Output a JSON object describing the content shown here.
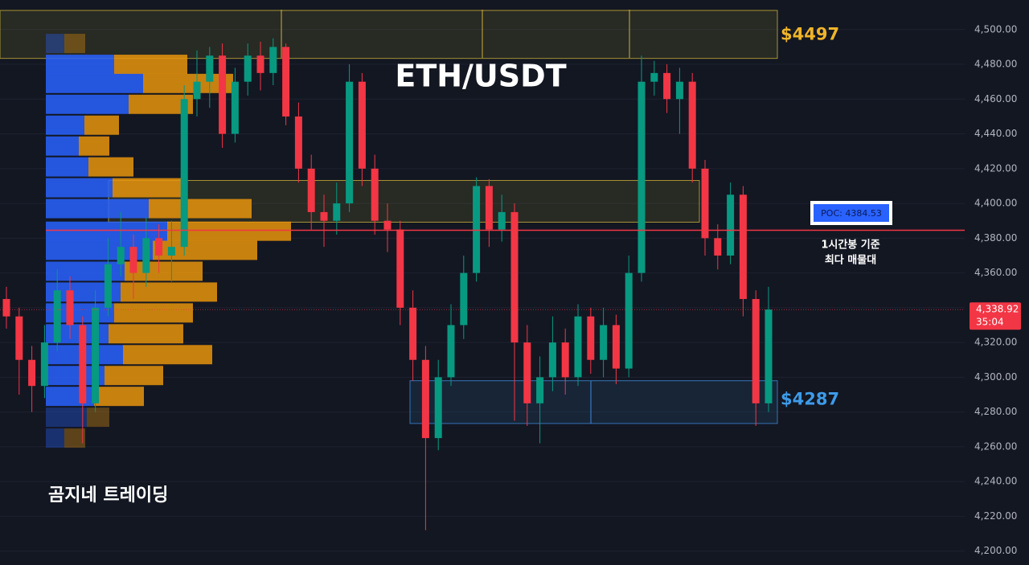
{
  "chart_data": {
    "type": "candlestick",
    "title": "ETH/USDT",
    "watermark": "곰지네 트레이딩",
    "up_color": "#089981",
    "down_color": "#f23645",
    "open": [
      4345,
      4335,
      4310,
      4295,
      4320,
      4350,
      4330,
      4285,
      4340,
      4365,
      4375,
      4360,
      4380,
      4370,
      4375,
      4460,
      4470,
      4485,
      4440,
      4470,
      4485,
      4475,
      4490,
      4450,
      4420,
      4395,
      4390,
      4400,
      4470,
      4420,
      4390,
      4385,
      4340,
      4310,
      4265,
      4300,
      4330,
      4360,
      4410,
      4385,
      4395,
      4320,
      4285,
      4300,
      4320,
      4300,
      4335,
      4310,
      4330,
      4305,
      4360,
      4470,
      4475,
      4460,
      4470,
      4420,
      4380,
      4370,
      4405,
      4345,
      4285
    ],
    "high": [
      4352,
      4340,
      4318,
      4330,
      4362,
      4358,
      4335,
      4350,
      4380,
      4395,
      4382,
      4392,
      4388,
      4390,
      4468,
      4488,
      4490,
      4492,
      4478,
      4492,
      4493,
      4495,
      4492,
      4458,
      4428,
      4405,
      4412,
      4480,
      4475,
      4428,
      4400,
      4390,
      4350,
      4318,
      4310,
      4342,
      4370,
      4415,
      4414,
      4405,
      4400,
      4330,
      4312,
      4335,
      4328,
      4342,
      4340,
      4340,
      4336,
      4370,
      4485,
      4482,
      4480,
      4478,
      4475,
      4425,
      4388,
      4412,
      4410,
      4350,
      4352
    ],
    "low": [
      4328,
      4290,
      4280,
      4288,
      4315,
      4322,
      4262,
      4280,
      4335,
      4358,
      4345,
      4352,
      4360,
      4355,
      4370,
      4450,
      4455,
      4432,
      4435,
      4462,
      4465,
      4468,
      4445,
      4412,
      4385,
      4375,
      4382,
      4395,
      4410,
      4382,
      4372,
      4330,
      4298,
      4212,
      4258,
      4295,
      4322,
      4355,
      4375,
      4378,
      4275,
      4272,
      4262,
      4292,
      4290,
      4295,
      4302,
      4300,
      4296,
      4300,
      4355,
      4462,
      4452,
      4440,
      4412,
      4370,
      4362,
      4365,
      4335,
      4272,
      4280
    ],
    "close": [
      4335,
      4310,
      4295,
      4320,
      4350,
      4330,
      4285,
      4340,
      4365,
      4375,
      4360,
      4380,
      4370,
      4375,
      4460,
      4470,
      4485,
      4440,
      4470,
      4485,
      4475,
      4490,
      4450,
      4420,
      4395,
      4390,
      4400,
      4470,
      4420,
      4390,
      4385,
      4340,
      4310,
      4265,
      4300,
      4330,
      4360,
      4410,
      4385,
      4395,
      4320,
      4285,
      4300,
      4320,
      4300,
      4335,
      4310,
      4330,
      4305,
      4360,
      4470,
      4475,
      4460,
      4470,
      4420,
      4380,
      4370,
      4405,
      4345,
      4285,
      4338.92
    ],
    "ylim": [
      4192,
      4517
    ],
    "yticks": [
      {
        "value": 4200,
        "label": "4,200.00"
      },
      {
        "value": 4220,
        "label": "4,220.00"
      },
      {
        "value": 4240,
        "label": "4,240.00"
      },
      {
        "value": 4260,
        "label": "4,260.00"
      },
      {
        "value": 4280,
        "label": "4,280.00"
      },
      {
        "value": 4300,
        "label": "4,300.00"
      },
      {
        "value": 4320,
        "label": "4,320.00"
      },
      {
        "value": 4340,
        "label": "4,340.00"
      },
      {
        "value": 4360,
        "label": "4,360.00"
      },
      {
        "value": 4380,
        "label": "4,380.00"
      },
      {
        "value": 4400,
        "label": "4,400.00"
      },
      {
        "value": 4420,
        "label": "4,420.00"
      },
      {
        "value": 4440,
        "label": "4,440.00"
      },
      {
        "value": 4460,
        "label": "4,460.00"
      },
      {
        "value": 4480,
        "label": "4,480.00"
      },
      {
        "value": 4500,
        "label": "4,500.00"
      }
    ],
    "grid": true,
    "profile": {
      "bin": 12,
      "buy_color": "#2962ff",
      "sell_color": "#e8940c",
      "price": [
        4492,
        4480,
        4469,
        4457,
        4445,
        4433,
        4421,
        4409,
        4397,
        4384,
        4373,
        4361,
        4349,
        4337,
        4325,
        4313,
        4301,
        4289,
        4277,
        4265
      ],
      "buy": [
        23,
        85,
        121,
        103,
        48,
        41,
        53,
        83,
        128,
        151,
        133,
        98,
        93,
        85,
        78,
        96,
        73,
        60,
        51,
        23
      ],
      "sell": [
        26,
        91,
        112,
        80,
        43,
        38,
        56,
        88,
        128,
        154,
        130,
        97,
        120,
        98,
        93,
        111,
        73,
        62,
        28,
        26
      ]
    },
    "zones": [
      {
        "low": 4483.4,
        "high": 4511,
        "level": 4497,
        "label": "$4497",
        "color": "#c9b23a"
      },
      {
        "low": 4389.2,
        "high": 4413.2,
        "color": "#c9b23a"
      },
      {
        "low": 4273.4,
        "high": 4298,
        "level": 4287,
        "label": "$4287",
        "color": "#3d8ad8"
      }
    ],
    "poc": {
      "value": 4384.53,
      "label": "POC: 4384.53",
      "note": [
        "1시간봉 기준",
        "최다 매물대"
      ],
      "color": "#f23645"
    },
    "last_price": {
      "value": 4338.92,
      "label": "4,338.92",
      "countdown": "35:04"
    }
  }
}
